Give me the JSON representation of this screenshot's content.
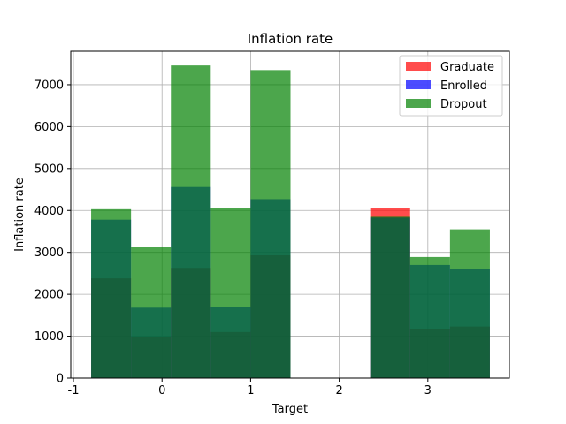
{
  "chart_data": {
    "type": "bar",
    "title": "Inflation rate",
    "xlabel": "Target",
    "ylabel": "Inflation rate",
    "xlim": [
      -1.03,
      3.92
    ],
    "ylim": [
      0,
      7800
    ],
    "xticks": [
      -1,
      0,
      1,
      2,
      3
    ],
    "yticks": [
      0,
      1000,
      2000,
      3000,
      4000,
      5000,
      6000,
      7000
    ],
    "grid": true,
    "legend_position": "upper right",
    "bin_edges": [
      -0.8,
      -0.35,
      0.1,
      0.55,
      1.0,
      1.45,
      1.9,
      2.35,
      2.8,
      3.25,
      3.7
    ],
    "series": [
      {
        "name": "Graduate",
        "color": "#ff0000",
        "alpha": 0.7,
        "values": [
          2380,
          980,
          2630,
          1100,
          2930,
          0,
          0,
          4060,
          1170,
          1230
        ]
      },
      {
        "name": "Enrolled",
        "color": "#0000ff",
        "alpha": 0.7,
        "values": [
          3780,
          1680,
          4560,
          1700,
          4270,
          0,
          0,
          3830,
          2700,
          2610
        ]
      },
      {
        "name": "Dropout",
        "color": "#008000",
        "alpha": 0.7,
        "values": [
          4030,
          3120,
          7460,
          4060,
          7350,
          0,
          0,
          3850,
          2890,
          3550
        ]
      }
    ]
  }
}
